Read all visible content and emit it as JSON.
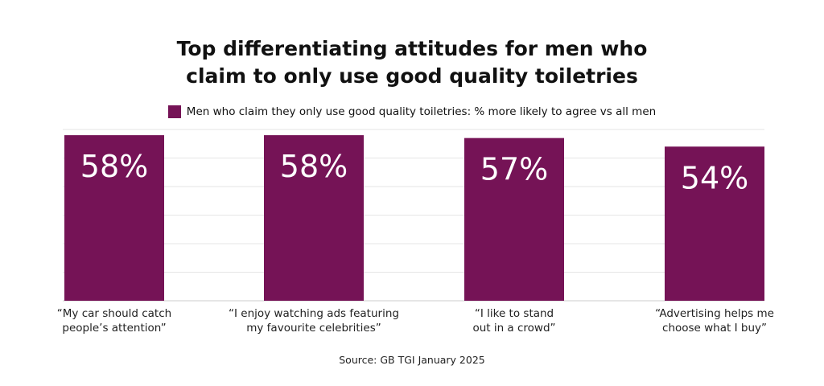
{
  "chart_data": {
    "type": "bar",
    "title": "Top differentiating attitudes for men who claim to only use good quality toiletries",
    "title_lines": [
      "Top differentiating attitudes for men who",
      "claim to only use good quality toiletries"
    ],
    "categories": [
      [
        "“My car should catch",
        "people’s attention”"
      ],
      [
        "“I enjoy watching ads featuring",
        "my favourite celebrities”"
      ],
      [
        "“I like to stand",
        "out in a crowd”"
      ],
      [
        "“Advertising helps me",
        "choose what I buy”"
      ]
    ],
    "series": [
      {
        "name": "Men who claim they only use good quality toiletries: % more likely to agree vs all men",
        "values": [
          58,
          58,
          57,
          54
        ],
        "color": "#751356"
      }
    ],
    "data_labels": [
      "58%",
      "58%",
      "57%",
      "54%"
    ],
    "ylim": [
      0,
      60
    ],
    "grid": true,
    "legend": "top",
    "source": "Source: GB TGI January 2025"
  }
}
